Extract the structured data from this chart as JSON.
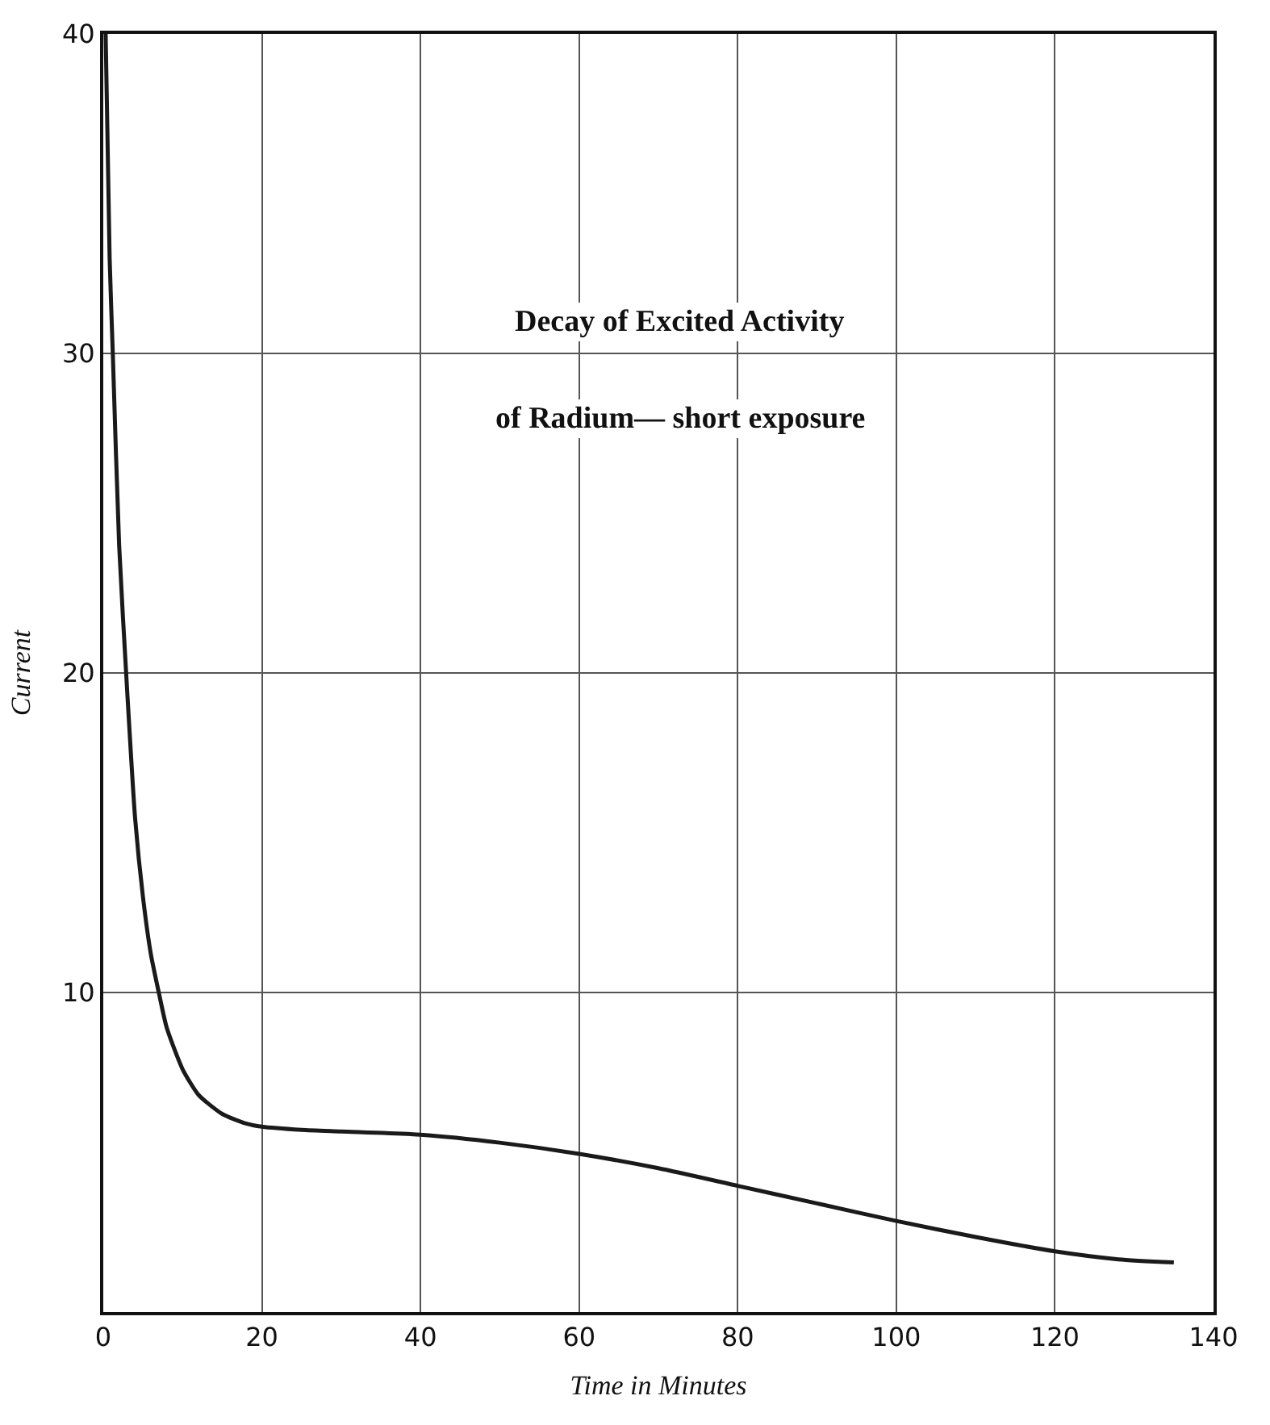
{
  "chart_data": {
    "type": "line",
    "xlabel": "Time in Minutes",
    "ylabel": "Current",
    "annotations": [
      "Decay of Excited Activity",
      "of Radium— short exposure"
    ],
    "x": [
      0.3,
      0.8,
      1.2,
      2,
      3,
      4,
      5,
      6,
      7,
      8,
      10,
      12,
      15,
      18,
      20,
      25,
      30,
      40,
      50,
      60,
      70,
      80,
      90,
      100,
      110,
      120,
      128,
      135
    ],
    "series": [
      {
        "color": "#1a1a1a",
        "values": [
          40,
          33,
          30,
          24,
          19.5,
          15.5,
          13,
          11.2,
          10,
          8.9,
          7.6,
          6.8,
          6.2,
          5.9,
          5.8,
          5.7,
          5.65,
          5.55,
          5.3,
          4.95,
          4.5,
          3.95,
          3.4,
          2.85,
          2.35,
          1.9,
          1.65,
          1.55
        ]
      }
    ],
    "xlim": [
      0,
      140
    ],
    "ylim": [
      0,
      40
    ],
    "xticks": [
      0,
      20,
      40,
      60,
      80,
      100,
      120,
      140
    ],
    "yticks": [
      10,
      20,
      30,
      40
    ],
    "grid": true,
    "legend": false,
    "marker": "none",
    "line_style": "solid"
  }
}
